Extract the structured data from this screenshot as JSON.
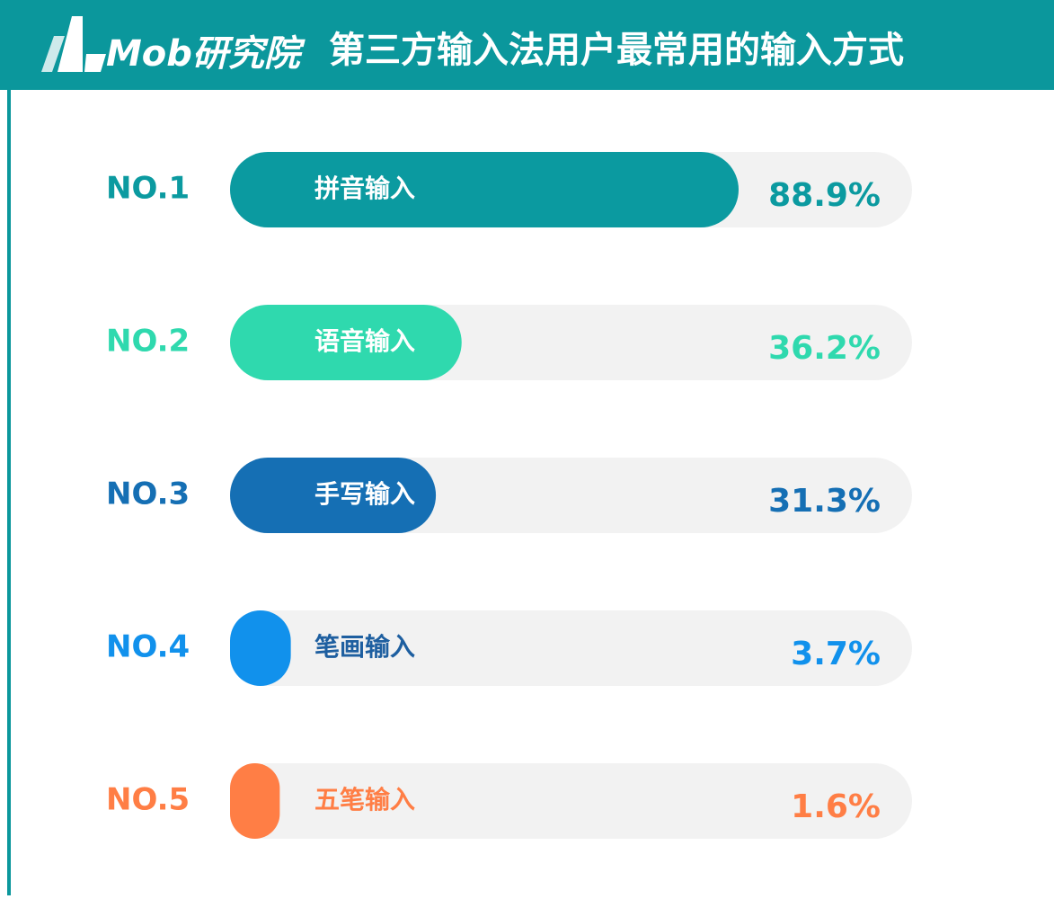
{
  "logo": "Mob研究院",
  "chart_data": {
    "type": "bar",
    "title": "第三方输入法用户最常用的输入方式",
    "ranks": [
      "NO.1",
      "NO.2",
      "NO.3",
      "NO.4",
      "NO.5"
    ],
    "categories": [
      "拼音输入",
      "语音输入",
      "手写输入",
      "笔画输入",
      "五笔输入"
    ],
    "values": [
      88.9,
      36.2,
      31.3,
      3.7,
      1.6
    ],
    "value_labels": [
      "88.9%",
      "36.2%",
      "31.3%",
      "3.7%",
      "1.6%"
    ],
    "colors": [
      "#0b9aa0",
      "#2fd9ae",
      "#156fb4",
      "#1191ec",
      "#ff7e45"
    ]
  }
}
